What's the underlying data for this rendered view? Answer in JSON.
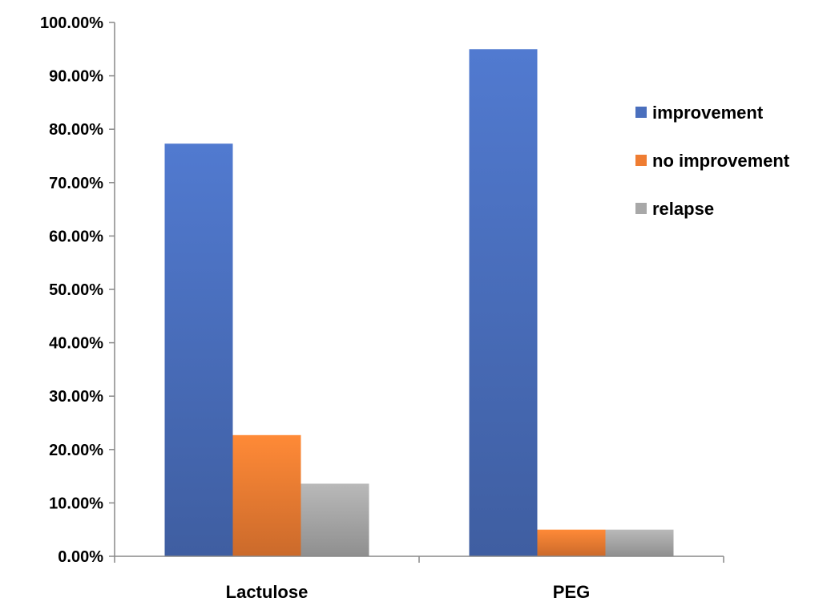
{
  "chart_data": {
    "type": "bar",
    "title": "",
    "xlabel": "",
    "ylabel": "",
    "categories": [
      "Lactulose",
      "PEG"
    ],
    "series": [
      {
        "name": "improvement",
        "values": [
          77.3,
          95.0
        ],
        "color": "#4a6fbd"
      },
      {
        "name": "no improvement",
        "values": [
          22.7,
          5.0
        ],
        "color": "#ef7d32"
      },
      {
        "name": "relapse",
        "values": [
          13.6,
          5.0
        ],
        "color": "#a8a8a8"
      }
    ],
    "ylim": [
      0,
      100
    ],
    "yticks": [
      "0.00%",
      "10.00%",
      "20.00%",
      "30.00%",
      "40.00%",
      "50.00%",
      "60.00%",
      "70.00%",
      "80.00%",
      "90.00%",
      "100.00%"
    ],
    "y_tick_values": [
      0,
      10,
      20,
      30,
      40,
      50,
      60,
      70,
      80,
      90,
      100
    ],
    "grid": false,
    "legend_position": "right"
  }
}
